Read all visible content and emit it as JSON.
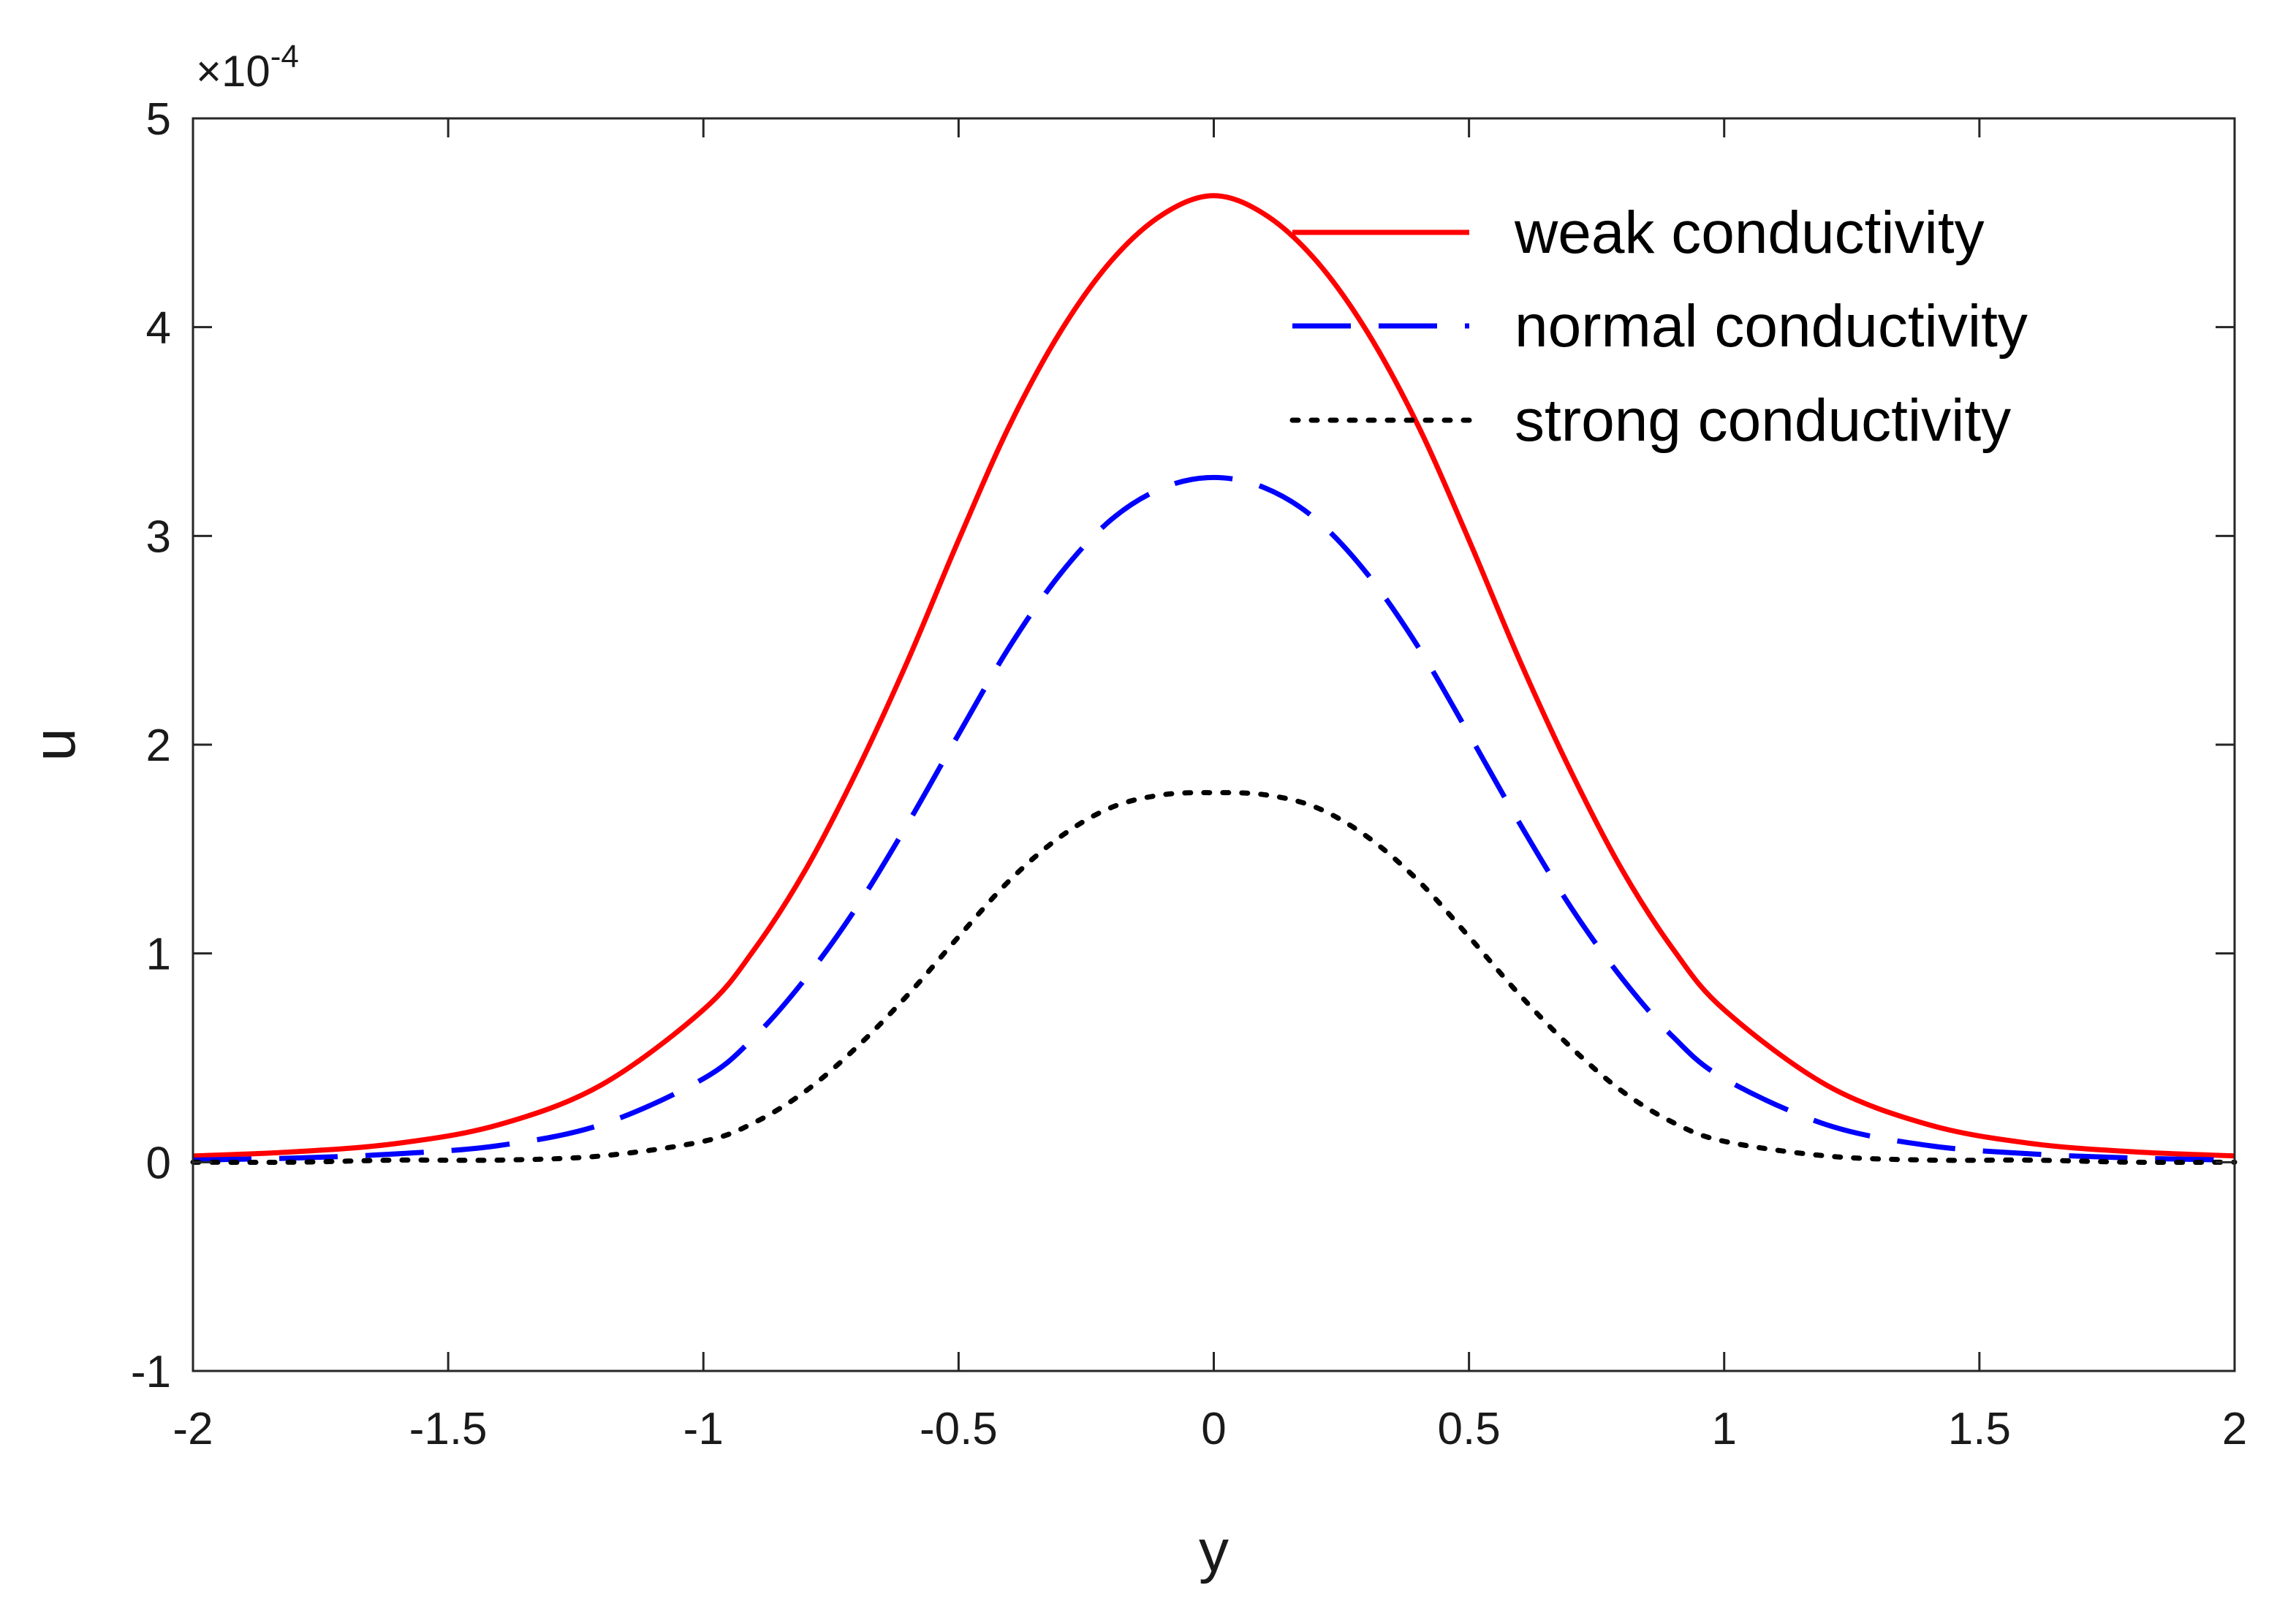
{
  "chart_data": {
    "type": "line",
    "title": "",
    "xlabel": "y",
    "ylabel": "u",
    "xlim": [
      -2,
      2
    ],
    "ylim": [
      -1,
      5
    ],
    "x_ticks": [
      -2,
      -1.5,
      -1,
      -0.5,
      0,
      0.5,
      1,
      1.5,
      2
    ],
    "x_tick_labels": [
      "-2",
      "-1.5",
      "-1",
      "-0.5",
      "0",
      "0.5",
      "1",
      "1.5",
      "2"
    ],
    "y_ticks": [
      -1,
      0,
      1,
      2,
      3,
      4,
      5
    ],
    "y_tick_labels": [
      "-1",
      "0",
      "1",
      "2",
      "3",
      "4",
      "5"
    ],
    "y_exponent": {
      "base": "×10",
      "power": "-4"
    },
    "grid": false,
    "legend_position": "top-right",
    "series": [
      {
        "name": "weak conductivity",
        "color": "#ff0000",
        "style": "solid",
        "x": [
          -2,
          -1.8,
          -1.6,
          -1.4,
          -1.2,
          -1.0,
          -0.9,
          -0.8,
          -0.7,
          -0.6,
          -0.5,
          -0.4,
          -0.3,
          -0.2,
          -0.1,
          0,
          0.1,
          0.2,
          0.3,
          0.4,
          0.5,
          0.6,
          0.7,
          0.8,
          0.9,
          1.0,
          1.2,
          1.4,
          1.6,
          1.8,
          2
        ],
        "y": [
          0.03,
          0.05,
          0.09,
          0.18,
          0.37,
          0.73,
          1.02,
          1.4,
          1.87,
          2.4,
          2.98,
          3.53,
          3.98,
          4.32,
          4.54,
          4.63,
          4.54,
          4.32,
          3.98,
          3.53,
          2.98,
          2.4,
          1.87,
          1.4,
          1.02,
          0.73,
          0.37,
          0.18,
          0.09,
          0.05,
          0.03
        ]
      },
      {
        "name": "normal conductivity",
        "color": "#0000ff",
        "style": "dashed",
        "x": [
          -2,
          -1.8,
          -1.6,
          -1.4,
          -1.2,
          -1.0,
          -0.9,
          -0.8,
          -0.7,
          -0.6,
          -0.5,
          -0.4,
          -0.3,
          -0.2,
          -0.1,
          0,
          0.1,
          0.2,
          0.3,
          0.4,
          0.5,
          0.6,
          0.7,
          0.8,
          0.9,
          1.0,
          1.2,
          1.4,
          1.6,
          1.8,
          2
        ],
        "y": [
          0.01,
          0.02,
          0.04,
          0.08,
          0.18,
          0.4,
          0.6,
          0.88,
          1.22,
          1.62,
          2.05,
          2.47,
          2.82,
          3.08,
          3.23,
          3.28,
          3.23,
          3.08,
          2.82,
          2.47,
          2.05,
          1.62,
          1.22,
          0.88,
          0.6,
          0.4,
          0.18,
          0.08,
          0.04,
          0.02,
          0.01
        ]
      },
      {
        "name": "strong conductivity",
        "color": "#000000",
        "style": "dotted",
        "x": [
          -2,
          -1.8,
          -1.6,
          -1.4,
          -1.2,
          -1.0,
          -0.9,
          -0.8,
          -0.7,
          -0.6,
          -0.5,
          -0.4,
          -0.3,
          -0.2,
          -0.1,
          0,
          0.1,
          0.2,
          0.3,
          0.4,
          0.5,
          0.6,
          0.7,
          0.8,
          0.9,
          1.0,
          1.2,
          1.4,
          1.6,
          1.8,
          2
        ],
        "y": [
          0.0,
          0.0,
          0.01,
          0.01,
          0.03,
          0.1,
          0.19,
          0.34,
          0.55,
          0.8,
          1.08,
          1.35,
          1.56,
          1.7,
          1.76,
          1.77,
          1.76,
          1.7,
          1.56,
          1.35,
          1.08,
          0.8,
          0.55,
          0.34,
          0.19,
          0.1,
          0.03,
          0.01,
          0.01,
          0.0,
          0.0
        ]
      }
    ]
  }
}
